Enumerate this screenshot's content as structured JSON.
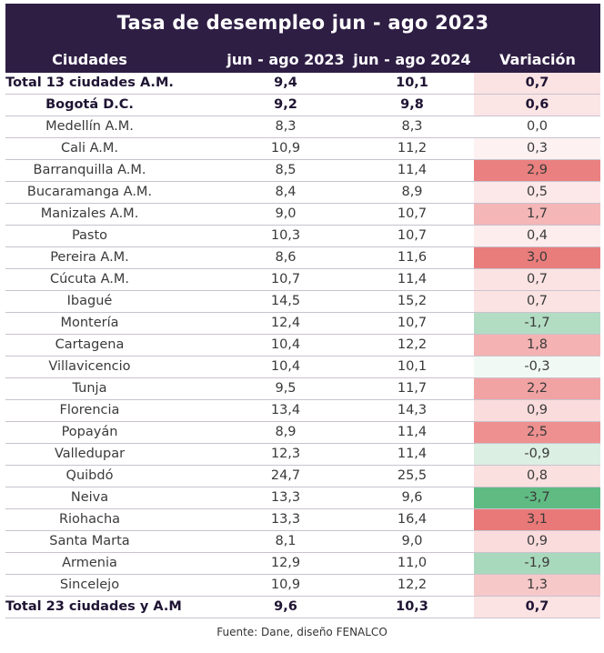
{
  "title": "Tasa de desempleo jun - ago 2023",
  "columns": [
    "Ciudades",
    "jun - ago 2023",
    "jun - ago 2024",
    "Variación"
  ],
  "rows": [
    {
      "city": "Total 13 ciudades A.M.",
      "y2023": "9,4",
      "y2024": "10,1",
      "variation": "0,7",
      "bold": true,
      "color": "#fbe3e3"
    },
    {
      "city": "Bogotá D.C.",
      "y2023": "9,2",
      "y2024": "9,8",
      "variation": "0,6",
      "bold": true,
      "color": "#fbe5e5"
    },
    {
      "city": "Medellín A.M.",
      "y2023": "8,3",
      "y2024": "8,3",
      "variation": "0,0",
      "bold": false,
      "color": "#ffffff"
    },
    {
      "city": "Cali A.M.",
      "y2023": "10,9",
      "y2024": "11,2",
      "variation": "0,3",
      "bold": false,
      "color": "#fdf1f1"
    },
    {
      "city": "Barranquilla A.M.",
      "y2023": "8,5",
      "y2024": "11,4",
      "variation": "2,9",
      "bold": false,
      "color": "#ea807f"
    },
    {
      "city": "Bucaramanga A.M.",
      "y2023": "8,4",
      "y2024": "8,9",
      "variation": "0,5",
      "bold": false,
      "color": "#fce8e8"
    },
    {
      "city": "Manizales A.M.",
      "y2023": "9,0",
      "y2024": "10,7",
      "variation": "1,7",
      "bold": false,
      "color": "#f4b6b6"
    },
    {
      "city": "Pasto",
      "y2023": "10,3",
      "y2024": "10,7",
      "variation": "0,4",
      "bold": false,
      "color": "#fdeded"
    },
    {
      "city": "Pereira A.M.",
      "y2023": "8,6",
      "y2024": "11,6",
      "variation": "3,0",
      "bold": false,
      "color": "#e97d7c"
    },
    {
      "city": "Cúcuta A.M.",
      "y2023": "10,7",
      "y2024": "11,4",
      "variation": "0,7",
      "bold": false,
      "color": "#fbe3e3"
    },
    {
      "city": "Ibagué",
      "y2023": "14,5",
      "y2024": "15,2",
      "variation": "0,7",
      "bold": false,
      "color": "#fbe3e3"
    },
    {
      "city": "Montería",
      "y2023": "12,4",
      "y2024": "10,7",
      "variation": "-1,7",
      "bold": false,
      "color": "#b2ddc3"
    },
    {
      "city": "Cartagena",
      "y2023": "10,4",
      "y2024": "12,2",
      "variation": "1,8",
      "bold": false,
      "color": "#f4b2b2"
    },
    {
      "city": "Villavicencio",
      "y2023": "10,4",
      "y2024": "10,1",
      "variation": "-0,3",
      "bold": false,
      "color": "#f1f9f4"
    },
    {
      "city": "Tunja",
      "y2023": "9,5",
      "y2024": "11,7",
      "variation": "2,2",
      "bold": false,
      "color": "#f1a3a3"
    },
    {
      "city": "Florencia",
      "y2023": "13,4",
      "y2024": "14,3",
      "variation": "0,9",
      "bold": false,
      "color": "#fadcdc"
    },
    {
      "city": "Popayán",
      "y2023": "8,9",
      "y2024": "11,4",
      "variation": "2,5",
      "bold": false,
      "color": "#ee9090"
    },
    {
      "city": "Valledupar",
      "y2023": "12,3",
      "y2024": "11,4",
      "variation": "-0,9",
      "bold": false,
      "color": "#dbefe2"
    },
    {
      "city": "Quibdó",
      "y2023": "24,7",
      "y2024": "25,5",
      "variation": "0,8",
      "bold": false,
      "color": "#fbe0e0"
    },
    {
      "city": "Neiva",
      "y2023": "13,3",
      "y2024": "9,6",
      "variation": "-3,7",
      "bold": false,
      "color": "#5fbb82"
    },
    {
      "city": "Riohacha",
      "y2023": "13,3",
      "y2024": "16,4",
      "variation": "3,1",
      "bold": false,
      "color": "#e97978"
    },
    {
      "city": "Santa Marta",
      "y2023": "8,1",
      "y2024": "9,0",
      "variation": "0,9",
      "bold": false,
      "color": "#fadcdc"
    },
    {
      "city": "Armenia",
      "y2023": "12,9",
      "y2024": "11,0",
      "variation": "-1,9",
      "bold": false,
      "color": "#a9d9bc"
    },
    {
      "city": "Sincelejo",
      "y2023": "10,9",
      "y2024": "12,2",
      "variation": "1,3",
      "bold": false,
      "color": "#f7c8c8"
    },
    {
      "city": "Total 23 ciudades y A.M",
      "y2023": "9,6",
      "y2024": "10,3",
      "variation": "0,7",
      "bold": true,
      "color": "#fbe3e3"
    }
  ],
  "footer": "Fuente: Dane, diseño FENALCO",
  "colors": {
    "header_bg": "#2e1e44",
    "header_text": "#ffffff",
    "positive": "#e97978",
    "negative": "#5fbb82"
  }
}
